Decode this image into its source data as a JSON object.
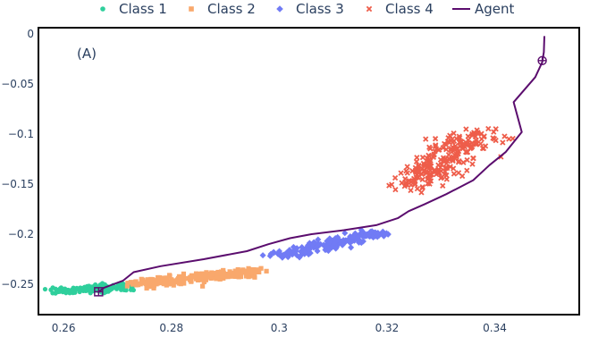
{
  "chart_data": {
    "type": "scatter",
    "annotation": "(A)",
    "xlim": [
      0.2555,
      0.3555
    ],
    "ylim": [
      -0.2795,
      0.0055
    ],
    "xticks": [
      0.26,
      0.28,
      0.3,
      0.32,
      0.34
    ],
    "xtick_labels": [
      "0.26",
      "0.28",
      "0.3",
      "0.32",
      "0.34"
    ],
    "yticks": [
      0,
      -0.05,
      -0.1,
      -0.15,
      -0.2,
      -0.25
    ],
    "ytick_labels": [
      "0",
      "−0.05",
      "−0.1",
      "−0.15",
      "−0.2",
      "−0.25"
    ],
    "legend": [
      {
        "label": "Class 1",
        "symbol": "circle",
        "color": "#2fcf9c"
      },
      {
        "label": "Class 2",
        "symbol": "square",
        "color": "#f9a86c"
      },
      {
        "label": "Class 3",
        "symbol": "diamond",
        "color": "#717bf5"
      },
      {
        "label": "Class 4",
        "symbol": "x",
        "color": "#ee5d4a"
      },
      {
        "label": "Agent",
        "symbol": "line",
        "color": "#5b0d6e"
      }
    ],
    "series": [
      {
        "name": "Class 1",
        "symbol": "circle",
        "color": "#2fcf9c",
        "count": 170,
        "clusters": [
          {
            "x0": 0.2585,
            "y0": -0.2575,
            "x1": 0.2718,
            "y1": -0.252,
            "spread": 0.0032,
            "weight": 1
          }
        ]
      },
      {
        "name": "Class 2",
        "symbol": "square",
        "color": "#f9a86c",
        "count": 240,
        "clusters": [
          {
            "x0": 0.2735,
            "y0": -0.25,
            "x1": 0.2955,
            "y1": -0.237,
            "spread": 0.0036,
            "weight": 1
          }
        ]
      },
      {
        "name": "Class 3",
        "symbol": "diamond",
        "color": "#717bf5",
        "count": 190,
        "clusters": [
          {
            "x0": 0.2995,
            "y0": -0.222,
            "x1": 0.3185,
            "y1": -0.198,
            "spread": 0.0034,
            "weight": 1
          }
        ]
      },
      {
        "name": "Class 4",
        "symbol": "x",
        "color": "#ee5d4a",
        "count": 230,
        "clusters": [
          {
            "x0": 0.3245,
            "y0": -0.15,
            "x1": 0.3375,
            "y1": -0.098,
            "spread": 0.0055,
            "weight": 1
          }
        ]
      }
    ],
    "agent": {
      "name": "Agent",
      "color": "#5b0d6e",
      "path": [
        [
          0.2665,
          -0.2575
        ],
        [
          0.2675,
          -0.2535
        ],
        [
          0.269,
          -0.2505
        ],
        [
          0.271,
          -0.2465
        ],
        [
          0.273,
          -0.238
        ],
        [
          0.278,
          -0.232
        ],
        [
          0.286,
          -0.225
        ],
        [
          0.294,
          -0.217
        ],
        [
          0.298,
          -0.21
        ],
        [
          0.302,
          -0.204
        ],
        [
          0.306,
          -0.2
        ],
        [
          0.312,
          -0.196
        ],
        [
          0.318,
          -0.191
        ],
        [
          0.322,
          -0.184
        ],
        [
          0.324,
          -0.177
        ],
        [
          0.327,
          -0.17
        ],
        [
          0.331,
          -0.16
        ],
        [
          0.336,
          -0.146
        ],
        [
          0.339,
          -0.131
        ],
        [
          0.342,
          -0.118
        ],
        [
          0.345,
          -0.098
        ],
        [
          0.3435,
          -0.068
        ],
        [
          0.3475,
          -0.043
        ],
        [
          0.3488,
          -0.028
        ],
        [
          0.3491,
          -0.018
        ],
        [
          0.3492,
          -0.002
        ]
      ],
      "start_marker": {
        "x": 0.2665,
        "y": -0.2575,
        "symbol": "square-cross"
      },
      "end_marker": {
        "x": 0.3488,
        "y": -0.0265,
        "symbol": "circle-cross"
      }
    }
  }
}
